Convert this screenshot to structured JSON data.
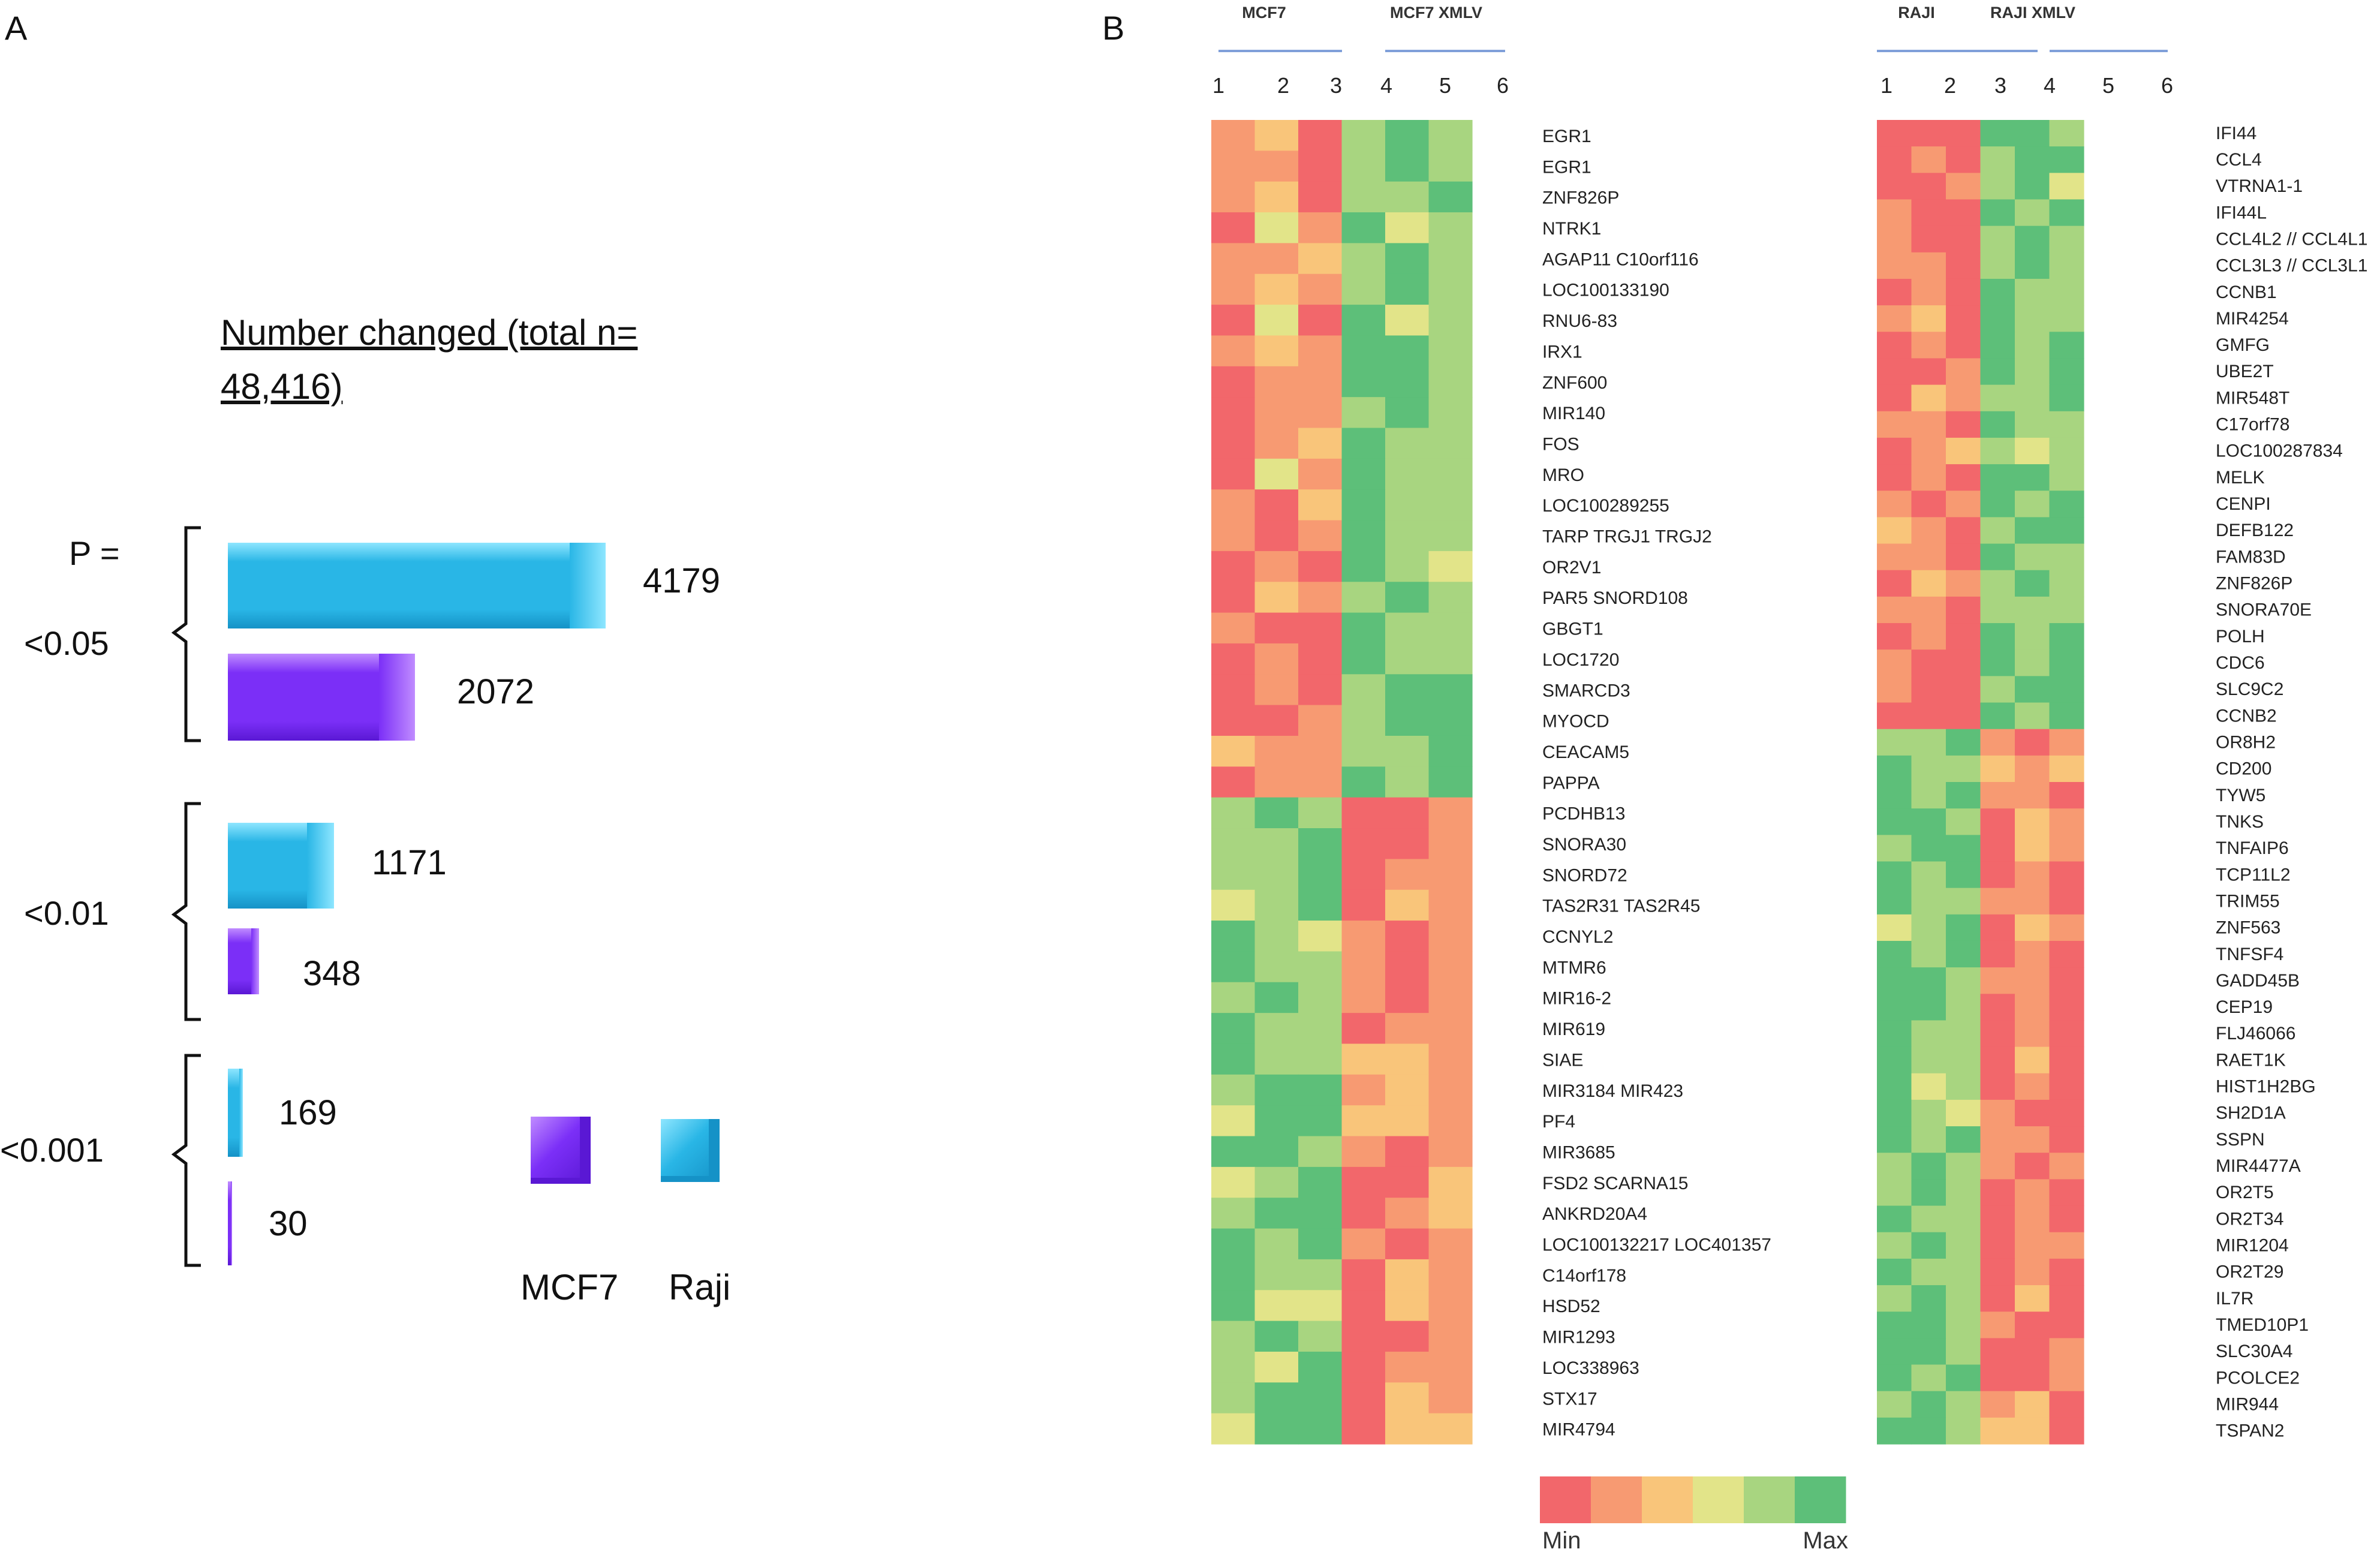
{
  "panel_a_label": "A",
  "panel_b_label": "B",
  "chart_data": [
    {
      "type": "bar",
      "orientation": "horizontal",
      "title_lines": [
        "Number changed (total n=",
        "48,416)"
      ],
      "p_header": "P =",
      "groups": [
        "<0.05",
        "<0.01",
        "<0.001"
      ],
      "series": [
        {
          "name": "Raji",
          "color": "#29b6e6",
          "values": [
            4179,
            1171,
            169
          ]
        },
        {
          "name": "MCF7",
          "color": "#7b2ff7",
          "values": [
            2072,
            348,
            30
          ]
        }
      ],
      "legend": [
        "MCF7",
        "Raji"
      ]
    },
    {
      "type": "heatmap",
      "legend_labels": {
        "min": "Min",
        "max": "Max"
      },
      "scale_colors": [
        "#f2676b",
        "#f79a72",
        "#f9c57a",
        "#e2e489",
        "#a8d580",
        "#5dbf79"
      ],
      "panels": [
        {
          "groups": [
            "MCF7",
            "MCF7 XMLV"
          ],
          "columns": [
            "1",
            "2",
            "3",
            "4",
            "5",
            "6"
          ],
          "rows": [
            "EGR1",
            "EGR1",
            "ZNF826P",
            "NTRK1",
            "AGAP11 C10orf116",
            "LOC100133190",
            "RNU6-83",
            "IRX1",
            "ZNF600",
            "MIR140",
            "FOS",
            "MRO",
            "LOC100289255",
            "TARP TRGJ1 TRGJ2",
            "OR2V1",
            "PAR5 SNORD108",
            "GBGT1",
            "LOC1720",
            "SMARCD3",
            "MYOCD",
            "CEACAM5",
            "PAPPA",
            "PCDHB13",
            "SNORA30",
            "SNORD72",
            "TAS2R31 TAS2R45",
            "CCNYL2",
            "MTMR6",
            "MIR16-2",
            "MIR619",
            "SIAE",
            "MIR3184 MIR423",
            "PF4",
            "MIR3685",
            "FSD2 SCARNA15",
            "ANKRD20A4",
            "LOC100132217 LOC401357",
            "C14orf178",
            "HSD52",
            "MIR1293",
            "LOC338963",
            "STX17",
            "MIR4794"
          ],
          "values": [
            [
              1,
              2,
              0,
              4,
              5,
              4
            ],
            [
              1,
              1,
              0,
              4,
              5,
              4
            ],
            [
              1,
              2,
              0,
              4,
              4,
              5
            ],
            [
              0,
              3,
              1,
              5,
              3,
              4
            ],
            [
              1,
              1,
              2,
              4,
              5,
              4
            ],
            [
              1,
              2,
              1,
              4,
              5,
              4
            ],
            [
              0,
              3,
              0,
              5,
              3,
              4
            ],
            [
              1,
              2,
              1,
              5,
              5,
              4
            ],
            [
              0,
              1,
              1,
              5,
              5,
              4
            ],
            [
              0,
              1,
              1,
              4,
              5,
              4
            ],
            [
              0,
              1,
              2,
              5,
              4,
              4
            ],
            [
              0,
              3,
              1,
              5,
              4,
              4
            ],
            [
              1,
              0,
              2,
              5,
              4,
              4
            ],
            [
              1,
              0,
              1,
              5,
              4,
              4
            ],
            [
              0,
              1,
              0,
              5,
              4,
              3
            ],
            [
              0,
              2,
              1,
              4,
              5,
              4
            ],
            [
              1,
              0,
              0,
              5,
              4,
              4
            ],
            [
              0,
              1,
              0,
              5,
              4,
              4
            ],
            [
              0,
              1,
              0,
              4,
              5,
              5
            ],
            [
              0,
              0,
              1,
              4,
              5,
              5
            ],
            [
              2,
              1,
              1,
              4,
              4,
              5
            ],
            [
              0,
              1,
              1,
              5,
              4,
              5
            ],
            [
              4,
              5,
              4,
              0,
              0,
              1
            ],
            [
              4,
              4,
              5,
              0,
              0,
              1
            ],
            [
              4,
              4,
              5,
              0,
              1,
              1
            ],
            [
              3,
              4,
              5,
              0,
              2,
              1
            ],
            [
              5,
              4,
              3,
              1,
              0,
              1
            ],
            [
              5,
              4,
              4,
              1,
              0,
              1
            ],
            [
              4,
              5,
              4,
              1,
              0,
              1
            ],
            [
              5,
              4,
              4,
              0,
              1,
              1
            ],
            [
              5,
              4,
              4,
              2,
              2,
              1
            ],
            [
              4,
              5,
              5,
              1,
              2,
              1
            ],
            [
              3,
              5,
              5,
              2,
              2,
              1
            ],
            [
              5,
              5,
              4,
              1,
              0,
              1
            ],
            [
              3,
              4,
              5,
              0,
              0,
              2
            ],
            [
              4,
              5,
              5,
              0,
              1,
              2
            ],
            [
              5,
              4,
              5,
              1,
              0,
              1
            ],
            [
              5,
              4,
              4,
              0,
              2,
              1
            ],
            [
              5,
              3,
              3,
              0,
              2,
              1
            ],
            [
              4,
              5,
              4,
              0,
              0,
              1
            ],
            [
              4,
              3,
              5,
              0,
              1,
              1
            ],
            [
              4,
              5,
              5,
              0,
              2,
              1
            ],
            [
              3,
              5,
              5,
              0,
              2,
              2
            ]
          ]
        },
        {
          "groups": [
            "RAJI",
            "RAJI XMLV"
          ],
          "columns": [
            "1",
            "2",
            "3",
            "4",
            "5",
            "6"
          ],
          "rows": [
            "IFI44",
            "CCL4",
            "VTRNA1-1",
            "IFI44L",
            "CCL4L2 // CCL4L1",
            "CCL3L3 // CCL3L1",
            "CCNB1",
            "MIR4254",
            "GMFG",
            "UBE2T",
            "MIR548T",
            "C17orf78",
            "LOC100287834",
            "MELK",
            "CENPI",
            "DEFB122",
            "FAM83D",
            "ZNF826P",
            "SNORA70E",
            "POLH",
            "CDC6",
            "SLC9C2",
            "CCNB2",
            "OR8H2",
            "CD200",
            "TYW5",
            "TNKS",
            "TNFAIP6",
            "TCP11L2",
            "TRIM55",
            "ZNF563",
            "TNFSF4",
            "GADD45B",
            "CEP19",
            "FLJ46066",
            "RAET1K",
            "HIST1H2BG",
            "SH2D1A",
            "SSPN",
            "MIR4477A",
            "OR2T5",
            "OR2T34",
            "MIR1204",
            "OR2T29",
            "IL7R",
            "TMED10P1",
            "SLC30A4",
            "PCOLCE2",
            "MIR944",
            "TSPAN2"
          ],
          "values": [
            [
              0,
              0,
              0,
              5,
              5,
              4
            ],
            [
              0,
              1,
              0,
              4,
              5,
              5
            ],
            [
              0,
              0,
              1,
              4,
              5,
              3
            ],
            [
              1,
              0,
              0,
              5,
              4,
              5
            ],
            [
              1,
              0,
              0,
              4,
              5,
              4
            ],
            [
              1,
              1,
              0,
              4,
              5,
              4
            ],
            [
              0,
              1,
              0,
              5,
              4,
              4
            ],
            [
              1,
              2,
              0,
              5,
              4,
              4
            ],
            [
              0,
              1,
              0,
              5,
              4,
              5
            ],
            [
              0,
              0,
              1,
              5,
              4,
              5
            ],
            [
              0,
              2,
              1,
              4,
              4,
              5
            ],
            [
              1,
              1,
              0,
              5,
              4,
              4
            ],
            [
              0,
              1,
              2,
              4,
              3,
              4
            ],
            [
              0,
              1,
              0,
              5,
              5,
              4
            ],
            [
              1,
              0,
              1,
              5,
              4,
              5
            ],
            [
              2,
              1,
              0,
              4,
              5,
              5
            ],
            [
              1,
              1,
              0,
              5,
              4,
              4
            ],
            [
              0,
              2,
              1,
              4,
              5,
              4
            ],
            [
              1,
              1,
              0,
              4,
              4,
              4
            ],
            [
              0,
              1,
              0,
              5,
              4,
              5
            ],
            [
              1,
              0,
              0,
              5,
              4,
              5
            ],
            [
              1,
              0,
              0,
              4,
              5,
              5
            ],
            [
              0,
              0,
              0,
              5,
              4,
              5
            ],
            [
              4,
              4,
              5,
              1,
              0,
              1
            ],
            [
              5,
              4,
              4,
              2,
              1,
              2
            ],
            [
              5,
              4,
              5,
              1,
              1,
              0
            ],
            [
              5,
              5,
              4,
              0,
              2,
              1
            ],
            [
              4,
              5,
              5,
              0,
              2,
              1
            ],
            [
              5,
              4,
              5,
              0,
              1,
              0
            ],
            [
              5,
              4,
              4,
              1,
              1,
              0
            ],
            [
              3,
              4,
              5,
              0,
              2,
              1
            ],
            [
              5,
              4,
              5,
              0,
              1,
              0
            ],
            [
              5,
              5,
              4,
              1,
              1,
              0
            ],
            [
              5,
              5,
              4,
              0,
              1,
              0
            ],
            [
              5,
              4,
              4,
              0,
              1,
              0
            ],
            [
              5,
              4,
              4,
              0,
              2,
              0
            ],
            [
              5,
              3,
              4,
              0,
              1,
              0
            ],
            [
              5,
              4,
              3,
              1,
              0,
              0
            ],
            [
              5,
              4,
              5,
              1,
              1,
              0
            ],
            [
              4,
              5,
              4,
              1,
              0,
              1
            ],
            [
              4,
              5,
              4,
              0,
              1,
              0
            ],
            [
              5,
              4,
              4,
              0,
              1,
              0
            ],
            [
              4,
              5,
              4,
              0,
              1,
              1
            ],
            [
              5,
              4,
              4,
              0,
              1,
              0
            ],
            [
              4,
              5,
              4,
              0,
              2,
              0
            ],
            [
              5,
              5,
              4,
              1,
              0,
              0
            ],
            [
              5,
              5,
              4,
              0,
              0,
              1
            ],
            [
              5,
              4,
              5,
              0,
              0,
              1
            ],
            [
              4,
              5,
              4,
              1,
              2,
              0
            ],
            [
              5,
              5,
              4,
              2,
              2,
              0
            ]
          ]
        }
      ]
    }
  ]
}
